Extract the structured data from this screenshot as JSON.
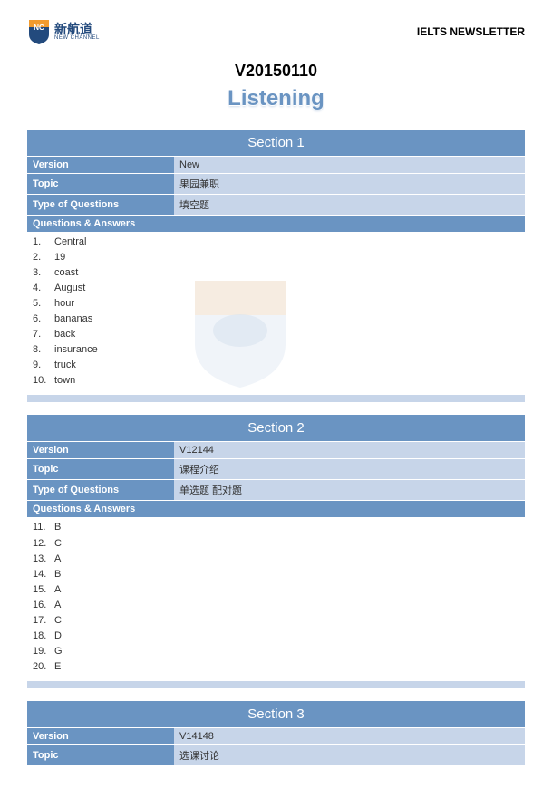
{
  "header": {
    "logo_cn": "新航道",
    "logo_en": "NEW CHANNEL",
    "newsletter": "IELTS NEWSLETTER"
  },
  "doc_title": "V20150110",
  "listening_title": "Listening",
  "sections": [
    {
      "title": "Section 1",
      "version_label": "Version",
      "version_value": "New",
      "topic_label": "Topic",
      "topic_value": "果园兼职",
      "toq_label": "Type of Questions",
      "toq_value": "填空题",
      "qa_label": "Questions & Answers",
      "answers": [
        {
          "n": "1.",
          "a": "Central"
        },
        {
          "n": "2.",
          "a": "19"
        },
        {
          "n": "3.",
          "a": "coast"
        },
        {
          "n": "4.",
          "a": "August"
        },
        {
          "n": "5.",
          "a": "hour"
        },
        {
          "n": "6.",
          "a": "bananas"
        },
        {
          "n": "7.",
          "a": "back"
        },
        {
          "n": "8.",
          "a": "insurance"
        },
        {
          "n": "9.",
          "a": "truck"
        },
        {
          "n": "10.",
          "a": "town"
        }
      ]
    },
    {
      "title": "Section 2",
      "version_label": "Version",
      "version_value": "V12144",
      "topic_label": "Topic",
      "topic_value": "课程介绍",
      "toq_label": "Type of Questions",
      "toq_value": "单选题 配对题",
      "qa_label": "Questions & Answers",
      "answers": [
        {
          "n": "11.",
          "a": "B"
        },
        {
          "n": "12.",
          "a": "C"
        },
        {
          "n": "13.",
          "a": "A"
        },
        {
          "n": "14.",
          "a": "B"
        },
        {
          "n": "15.",
          "a": "A"
        },
        {
          "n": "16.",
          "a": "A"
        },
        {
          "n": "17.",
          "a": "C"
        },
        {
          "n": "18.",
          "a": "D"
        },
        {
          "n": "19.",
          "a": "G"
        },
        {
          "n": "20.",
          "a": "E"
        }
      ]
    },
    {
      "title": "Section 3",
      "version_label": "Version",
      "version_value": "V14148",
      "topic_label": "Topic",
      "topic_value": "选课讨论",
      "toq_label": "",
      "toq_value": "",
      "qa_label": "",
      "answers": []
    }
  ],
  "colors": {
    "header_blue": "#6a94c2",
    "light_blue": "#c7d5e9",
    "logo_blue": "#234a7d",
    "logo_orange": "#f29b2e"
  }
}
